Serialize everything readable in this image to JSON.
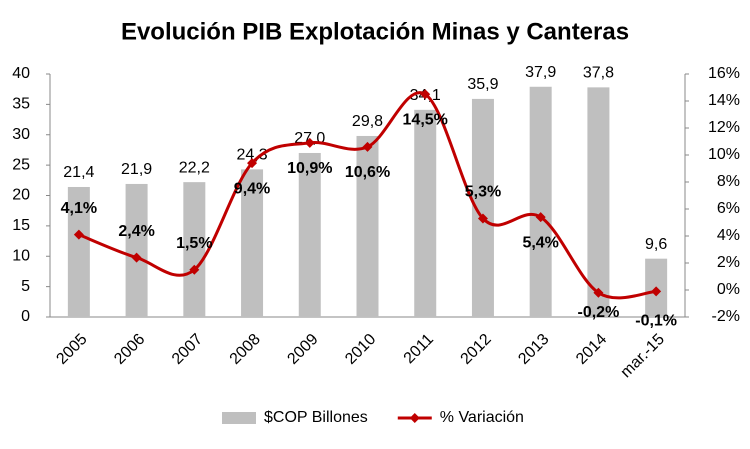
{
  "chart_data": {
    "type": "bar_line",
    "title": "Evolución PIB Explotación Minas y Canteras",
    "categories": [
      "2005",
      "2006",
      "2007",
      "2008",
      "2009",
      "2010",
      "2011",
      "2012",
      "2013",
      "2014",
      "mar.-15"
    ],
    "series": [
      {
        "name": "$COP Billones",
        "color": "#bfbfbf",
        "type": "bar",
        "values": [
          21.4,
          21.9,
          22.2,
          24.3,
          27.0,
          29.8,
          34.1,
          35.9,
          37.9,
          37.8,
          9.6
        ],
        "value_labels": [
          "21,4",
          "21,9",
          "22,2",
          "24,3",
          "27,0",
          "29,8",
          "34,1",
          "35,9",
          "37,9",
          "37,8",
          "9,6"
        ]
      },
      {
        "name": "% Variación",
        "color": "#c00000",
        "type": "line",
        "axis": "y2",
        "values": [
          4.1,
          2.4,
          1.5,
          9.4,
          10.9,
          10.6,
          14.5,
          5.3,
          5.4,
          -0.2,
          -0.1
        ],
        "value_labels": [
          "4,1%",
          "2,4%",
          "1,5%",
          "9,4%",
          "10,9%",
          "10,6%",
          "14,5%",
          "5,3%",
          "5,4%",
          "-0,2%",
          "-0,1%"
        ]
      }
    ],
    "ylim": [
      0,
      40
    ],
    "yticks": [
      0,
      5,
      10,
      15,
      20,
      25,
      30,
      35,
      40
    ],
    "y2lim": [
      -2,
      16
    ],
    "y2ticks": [
      {
        "value": -2,
        "label": "-2%"
      },
      {
        "value": 0,
        "label": "0%"
      },
      {
        "value": 2,
        "label": "2%"
      },
      {
        "value": 4,
        "label": "4%"
      },
      {
        "value": 6,
        "label": "6%"
      },
      {
        "value": 8,
        "label": "8%"
      },
      {
        "value": 10,
        "label": "10%"
      },
      {
        "value": 12,
        "label": "12%"
      },
      {
        "value": 14,
        "label": "14%"
      },
      {
        "value": 16,
        "label": "16%"
      }
    ],
    "legend": "bottom"
  }
}
